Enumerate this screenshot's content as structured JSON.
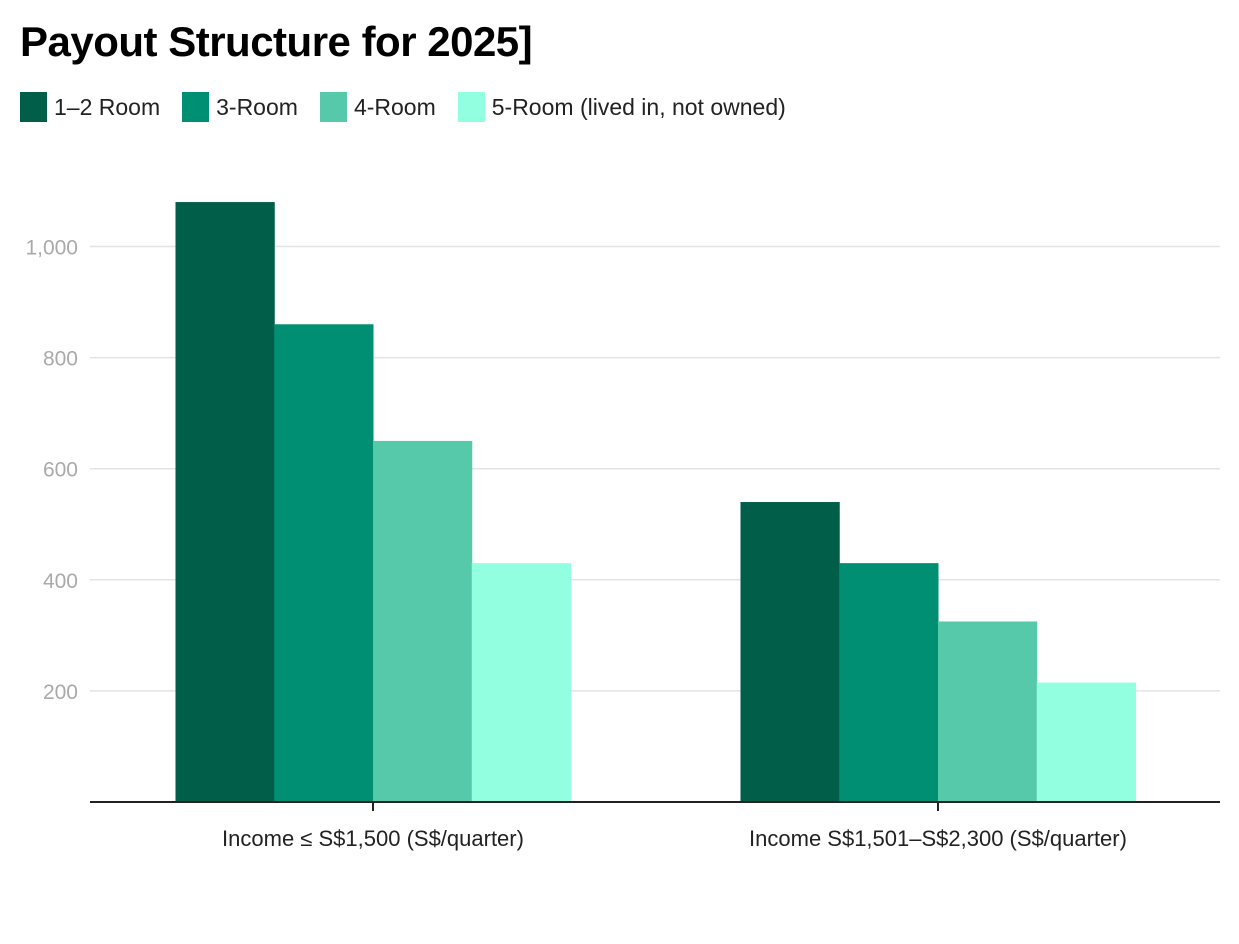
{
  "chart_data": {
    "type": "bar",
    "title": "Payout Structure for 2025]",
    "categories": [
      "Income ≤ S$1,500 (S$/quarter)",
      "Income S$1,501–S$2,300 (S$/quarter)"
    ],
    "series": [
      {
        "name": "1–2 Room",
        "color": "#005e49",
        "values": [
          1080,
          540
        ]
      },
      {
        "name": "3-Room",
        "color": "#008f72",
        "values": [
          860,
          430
        ]
      },
      {
        "name": "4-Room",
        "color": "#57c9ab",
        "values": [
          650,
          325
        ]
      },
      {
        "name": "5-Room (lived in, not owned)",
        "color": "#93ffe1",
        "values": [
          430,
          215
        ]
      }
    ],
    "yticks": [
      200,
      400,
      600,
      800,
      1000
    ],
    "ytick_labels": [
      "200",
      "400",
      "600",
      "800",
      "1,000"
    ],
    "ylim": [
      0,
      1080
    ],
    "xlabel": "",
    "ylabel": "",
    "grid": true,
    "legend": "top-left"
  }
}
